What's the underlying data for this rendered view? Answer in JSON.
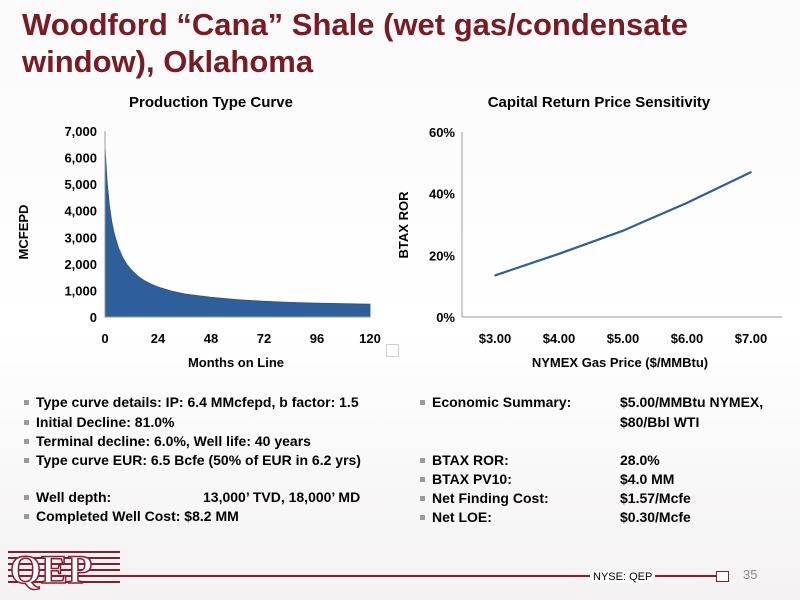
{
  "title": "Woodford “Cana” Shale (wet gas/condensate window), Oklahoma",
  "chart_data": [
    {
      "type": "area",
      "title": "Production Type Curve",
      "xlabel": "Months on Line",
      "ylabel": "MCFEPD",
      "x_ticks": [
        "0",
        "24",
        "48",
        "72",
        "96",
        "120"
      ],
      "y_ticks": [
        "0",
        "1,000",
        "2,000",
        "3,000",
        "4,000",
        "5,000",
        "6,000",
        "7,000"
      ],
      "xlim": [
        0,
        120
      ],
      "ylim": [
        0,
        7000
      ],
      "x": [
        0,
        1,
        2,
        3,
        4,
        6,
        8,
        10,
        12,
        15,
        18,
        21,
        24,
        30,
        36,
        42,
        48,
        60,
        72,
        84,
        96,
        108,
        120
      ],
      "y": [
        6400,
        5050,
        4200,
        3620,
        3200,
        2620,
        2240,
        1970,
        1770,
        1530,
        1360,
        1230,
        1130,
        980,
        870,
        800,
        740,
        650,
        590,
        550,
        520,
        500,
        480
      ],
      "color": "#2f5f9a",
      "grid": false
    },
    {
      "type": "line",
      "title": "Capital Return Price Sensitivity",
      "xlabel": "NYMEX Gas Price ($/MMBtu)",
      "ylabel": "BTAX ROR",
      "categories": [
        "$3.00",
        "$4.00",
        "$5.00",
        "$6.00",
        "$7.00"
      ],
      "values": [
        13.5,
        20.5,
        28,
        37,
        47
      ],
      "y_ticks": [
        "0%",
        "20%",
        "40%",
        "60%"
      ],
      "ylim": [
        0,
        60
      ],
      "color": "#2f5f9a",
      "grid": false
    }
  ],
  "left_bullets": [
    "Type curve details: IP:  6.4 MMcfepd, b factor: 1.5",
    " Initial Decline:  81.0%",
    "Terminal decline:  6.0%, Well life:  40 years",
    "Type curve EUR:   6.5 Bcfe (50% of EUR in 6.2 yrs)",
    "",
    "Well depth:",
    "Completed Well Cost:  $8.2 MM"
  ],
  "well_depth_value": "13,000’ TVD, 18,000’ MD",
  "right_bullets": [
    {
      "label": "Economic Summary:",
      "value": "$5.00/MMBtu NYMEX,"
    },
    {
      "label": "",
      "value": "$80/Bbl WTI"
    },
    {
      "label": "",
      "value": ""
    },
    {
      "label": "BTAX ROR:",
      "value": "28.0%"
    },
    {
      "label": "BTAX PV10:",
      "value": "$4.0 MM"
    },
    {
      "label": "Net Finding Cost:",
      "value": "$1.57/Mcfe"
    },
    {
      "label": "Net LOE:",
      "value": "$0.30/Mcfe"
    }
  ],
  "footer": {
    "exchange": "NYSE: QEP",
    "page_number": "35",
    "logo_text": "QEP",
    "brand_color": "#8a1c2b"
  }
}
